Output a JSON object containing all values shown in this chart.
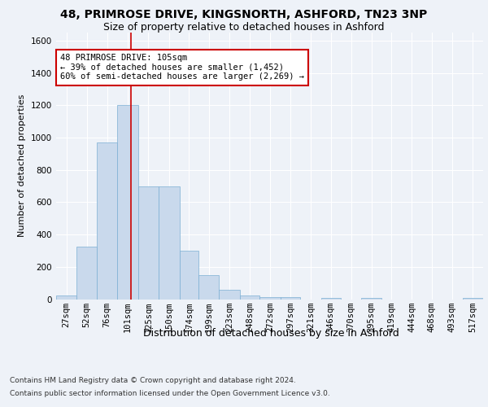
{
  "title1": "48, PRIMROSE DRIVE, KINGSNORTH, ASHFORD, TN23 3NP",
  "title2": "Size of property relative to detached houses in Ashford",
  "xlabel": "Distribution of detached houses by size in Ashford",
  "ylabel": "Number of detached properties",
  "footer1": "Contains HM Land Registry data © Crown copyright and database right 2024.",
  "footer2": "Contains public sector information licensed under the Open Government Licence v3.0.",
  "bar_color": "#c9d9ec",
  "bar_edge_color": "#7bafd4",
  "annotation_box_color": "#cc0000",
  "annotation_text": "48 PRIMROSE DRIVE: 105sqm\n← 39% of detached houses are smaller (1,452)\n60% of semi-detached houses are larger (2,269) →",
  "vline_x": 105,
  "vline_color": "#cc0000",
  "categories": [
    "27sqm",
    "52sqm",
    "76sqm",
    "101sqm",
    "125sqm",
    "150sqm",
    "174sqm",
    "199sqm",
    "223sqm",
    "248sqm",
    "272sqm",
    "297sqm",
    "321sqm",
    "346sqm",
    "370sqm",
    "395sqm",
    "419sqm",
    "444sqm",
    "468sqm",
    "493sqm",
    "517sqm"
  ],
  "bin_edges": [
    14.5,
    39.5,
    63.5,
    88.5,
    113.5,
    138.5,
    163.5,
    186.5,
    211.5,
    236.5,
    260.5,
    285.5,
    309.5,
    334.5,
    358.5,
    383.5,
    407.5,
    431.5,
    456.5,
    480.5,
    505.5,
    530.5
  ],
  "values": [
    25,
    325,
    970,
    1200,
    700,
    700,
    300,
    150,
    60,
    25,
    15,
    15,
    0,
    10,
    0,
    10,
    0,
    0,
    0,
    0,
    10
  ],
  "ylim": [
    0,
    1650
  ],
  "yticks": [
    0,
    200,
    400,
    600,
    800,
    1000,
    1200,
    1400,
    1600
  ],
  "background_color": "#eef2f8",
  "plot_bg_color": "#eef2f8",
  "title1_fontsize": 10,
  "title2_fontsize": 9,
  "xlabel_fontsize": 9,
  "ylabel_fontsize": 8,
  "tick_fontsize": 7.5,
  "annotation_fontsize": 7.5,
  "footer_fontsize": 6.5
}
